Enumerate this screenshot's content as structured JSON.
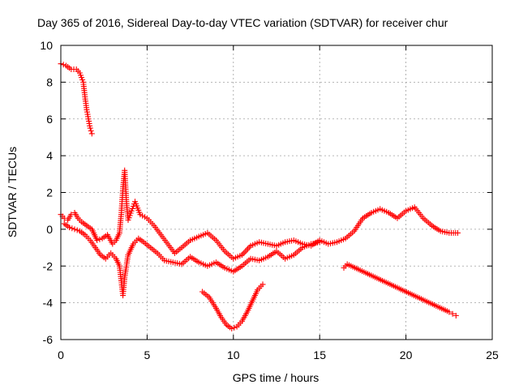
{
  "chart_data": {
    "type": "scatter",
    "title": "Day 365 of 2016, Sidereal Day-to-day VTEC variation (SDTVAR) for receiver chur",
    "xlabel": "GPS time / hours",
    "ylabel": "SDTVAR / TECUs",
    "xlim": [
      0,
      25
    ],
    "ylim": [
      -6,
      10
    ],
    "xticks": [
      0,
      5,
      10,
      15,
      20,
      25
    ],
    "yticks": [
      -6,
      -4,
      -2,
      0,
      2,
      4,
      6,
      8,
      10
    ],
    "grid": true,
    "marker": "+",
    "color": "#ff0000",
    "series": [
      {
        "name": "upper trace",
        "x": [
          0.0,
          0.3,
          0.6,
          0.9,
          1.1,
          1.3,
          1.4,
          1.5,
          1.6,
          1.7,
          1.8
        ],
        "y": [
          9.0,
          8.9,
          8.7,
          8.7,
          8.5,
          8.0,
          7.2,
          6.5,
          6.0,
          5.5,
          5.2
        ]
      },
      {
        "name": "main trace A",
        "x": [
          0.0,
          0.2,
          0.4,
          0.6,
          0.8,
          1.0,
          1.2,
          1.5,
          1.8,
          2.1,
          2.4,
          2.7,
          3.0,
          3.2,
          3.4,
          3.5,
          3.6,
          3.7,
          3.8,
          3.9,
          4.1,
          4.3,
          4.6,
          5.0,
          5.4,
          5.8,
          6.2,
          6.6,
          7.0,
          7.5,
          8.0,
          8.5,
          9.0,
          9.5,
          10.0,
          10.5,
          11.0,
          11.5,
          12.0,
          12.5,
          13.0,
          13.5,
          14.0,
          14.5,
          15.0,
          15.5,
          16.0,
          16.5,
          17.0,
          17.5,
          18.0,
          18.5,
          19.0,
          19.5,
          20.0,
          20.5,
          21.0,
          21.5,
          22.0,
          22.5,
          23.0
        ],
        "y": [
          0.8,
          0.6,
          0.5,
          0.8,
          0.9,
          0.6,
          0.4,
          0.2,
          0.0,
          -0.6,
          -0.5,
          -0.3,
          -0.8,
          -0.6,
          -0.2,
          0.8,
          2.2,
          3.2,
          1.5,
          0.5,
          1.0,
          1.5,
          0.8,
          0.6,
          0.2,
          -0.3,
          -0.8,
          -1.3,
          -1.0,
          -0.6,
          -0.4,
          -0.2,
          -0.6,
          -1.2,
          -1.6,
          -1.4,
          -0.9,
          -0.7,
          -0.8,
          -0.9,
          -0.7,
          -0.6,
          -0.8,
          -0.9,
          -0.6,
          -0.8,
          -0.7,
          -0.5,
          -0.1,
          0.6,
          0.9,
          1.1,
          0.9,
          0.6,
          1.0,
          1.2,
          0.6,
          0.2,
          -0.1,
          -0.2,
          -0.2
        ]
      },
      {
        "name": "main trace B",
        "x": [
          0.2,
          0.5,
          0.8,
          1.1,
          1.4,
          1.7,
          2.0,
          2.3,
          2.6,
          2.9,
          3.2,
          3.4,
          3.5,
          3.6,
          3.7,
          3.9,
          4.2,
          4.5,
          4.8,
          5.2,
          5.6,
          6.0,
          6.5,
          7.0,
          7.5,
          8.0,
          8.5,
          9.0,
          9.5,
          10.0,
          10.5,
          11.0,
          11.5,
          12.0,
          12.5,
          13.0,
          13.5,
          14.0,
          14.5,
          15.0
        ],
        "y": [
          0.3,
          0.1,
          0.0,
          -0.1,
          -0.3,
          -0.6,
          -1.0,
          -1.4,
          -1.6,
          -1.3,
          -1.6,
          -2.0,
          -2.8,
          -3.6,
          -2.6,
          -1.4,
          -0.8,
          -0.5,
          -0.7,
          -1.0,
          -1.3,
          -1.7,
          -1.8,
          -1.9,
          -1.5,
          -1.8,
          -2.0,
          -1.8,
          -2.1,
          -2.3,
          -2.0,
          -1.6,
          -1.7,
          -1.5,
          -1.2,
          -1.6,
          -1.4,
          -1.0,
          -0.8,
          -0.7
        ]
      },
      {
        "name": "lower arc",
        "x": [
          8.2,
          8.6,
          9.0,
          9.3,
          9.6,
          9.9,
          10.2,
          10.5,
          10.8,
          11.1,
          11.4,
          11.7
        ],
        "y": [
          -3.4,
          -3.7,
          -4.3,
          -4.8,
          -5.2,
          -5.4,
          -5.3,
          -5.0,
          -4.5,
          -3.9,
          -3.3,
          -3.0
        ]
      },
      {
        "name": "isolated segments",
        "x": [
          16.4,
          16.5,
          16.6,
          22.5,
          22.7,
          22.9
        ],
        "y": [
          -2.1,
          -2.0,
          -1.9,
          -4.5,
          -4.6,
          -4.7
        ]
      }
    ]
  }
}
